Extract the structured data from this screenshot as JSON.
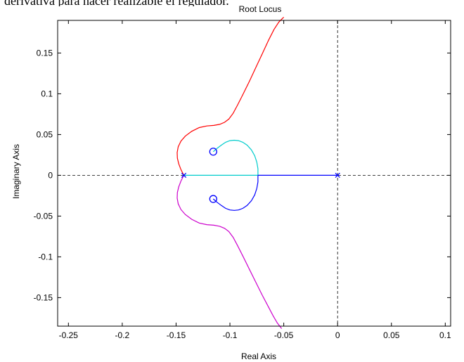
{
  "page": {
    "caption_fragment": "derivativa para hacer realizable el regulador."
  },
  "chart_data": {
    "type": "line",
    "title": "Root Locus",
    "xlabel": "Real Axis",
    "ylabel": "Imaginary Axis",
    "xlim": [
      -0.26,
      0.105
    ],
    "ylim": [
      -0.185,
      0.19
    ],
    "xticks": [
      -0.25,
      -0.2,
      -0.15,
      -0.1,
      -0.05,
      0,
      0.05,
      0.1
    ],
    "xtick_labels": [
      "-0.25",
      "-0.2",
      "-0.15",
      "-0.1",
      "-0.05",
      "0",
      "0.05",
      "0.1"
    ],
    "yticks": [
      -0.15,
      -0.1,
      -0.05,
      0,
      0.05,
      0.1,
      0.15
    ],
    "ytick_labels": [
      "-0.15",
      "-0.1",
      "-0.05",
      "0",
      "0.05",
      "0.1",
      "0.15"
    ],
    "grid": false,
    "reference_lines": {
      "x": 0,
      "y": 0,
      "style": "dashed"
    },
    "poles": [
      {
        "x": -0.1428,
        "y": 0
      },
      {
        "x": 0,
        "y": 0
      }
    ],
    "zeros": [
      {
        "x": -0.1155,
        "y": 0.029
      },
      {
        "x": -0.1155,
        "y": -0.029
      }
    ],
    "series": [
      {
        "color": "#ff0000",
        "x": [
          -0.1428,
          -0.1455,
          -0.1475,
          -0.1488,
          -0.149,
          -0.148,
          -0.1455,
          -0.1415,
          -0.1355,
          -0.1285,
          -0.1215,
          -0.115,
          -0.1095,
          -0.105,
          -0.101,
          -0.097,
          -0.093,
          -0.088,
          -0.082,
          -0.076,
          -0.07,
          -0.064,
          -0.059,
          -0.0545,
          -0.05
        ],
        "y": [
          0.0,
          0.007,
          0.014,
          0.021,
          0.028,
          0.035,
          0.042,
          0.048,
          0.054,
          0.0585,
          0.0605,
          0.0612,
          0.0625,
          0.065,
          0.069,
          0.076,
          0.086,
          0.099,
          0.115,
          0.132,
          0.149,
          0.166,
          0.179,
          0.188,
          0.194
        ]
      },
      {
        "color": "#cc00cc",
        "x": [
          -0.1428,
          -0.1455,
          -0.1475,
          -0.1488,
          -0.149,
          -0.148,
          -0.1455,
          -0.1415,
          -0.1355,
          -0.1285,
          -0.1215,
          -0.115,
          -0.1095,
          -0.105,
          -0.101,
          -0.097,
          -0.093,
          -0.088,
          -0.082,
          -0.076,
          -0.07,
          -0.064,
          -0.06,
          -0.056,
          -0.052
        ],
        "y": [
          0.0,
          -0.007,
          -0.014,
          -0.021,
          -0.028,
          -0.035,
          -0.042,
          -0.048,
          -0.054,
          -0.0585,
          -0.0605,
          -0.0612,
          -0.0625,
          -0.065,
          -0.069,
          -0.076,
          -0.086,
          -0.099,
          -0.115,
          -0.131,
          -0.147,
          -0.162,
          -0.172,
          -0.181,
          -0.188
        ]
      },
      {
        "color": "#00cccc",
        "x": [
          -0.1155,
          -0.112,
          -0.108,
          -0.104,
          -0.1,
          -0.096,
          -0.092,
          -0.088,
          -0.084,
          -0.08,
          -0.077,
          -0.075,
          -0.074,
          -0.074
        ],
        "y": [
          0.029,
          0.033,
          0.037,
          0.0405,
          0.0425,
          0.043,
          0.0425,
          0.0405,
          0.037,
          0.031,
          0.024,
          0.016,
          0.008,
          0.0
        ]
      },
      {
        "color": "#00cccc",
        "x": [
          -0.1428,
          -0.074
        ],
        "y": [
          0.0,
          0.0
        ]
      },
      {
        "color": "#0000ff",
        "x": [
          -0.1155,
          -0.112,
          -0.108,
          -0.104,
          -0.1,
          -0.096,
          -0.092,
          -0.088,
          -0.084,
          -0.08,
          -0.077,
          -0.075,
          -0.074,
          -0.074
        ],
        "y": [
          -0.029,
          -0.033,
          -0.037,
          -0.0405,
          -0.0425,
          -0.043,
          -0.0425,
          -0.0405,
          -0.037,
          -0.031,
          -0.024,
          -0.016,
          -0.008,
          0.0
        ]
      },
      {
        "color": "#0000ff",
        "x": [
          -0.074,
          0.0
        ],
        "y": [
          0.0,
          0.0
        ]
      }
    ]
  }
}
